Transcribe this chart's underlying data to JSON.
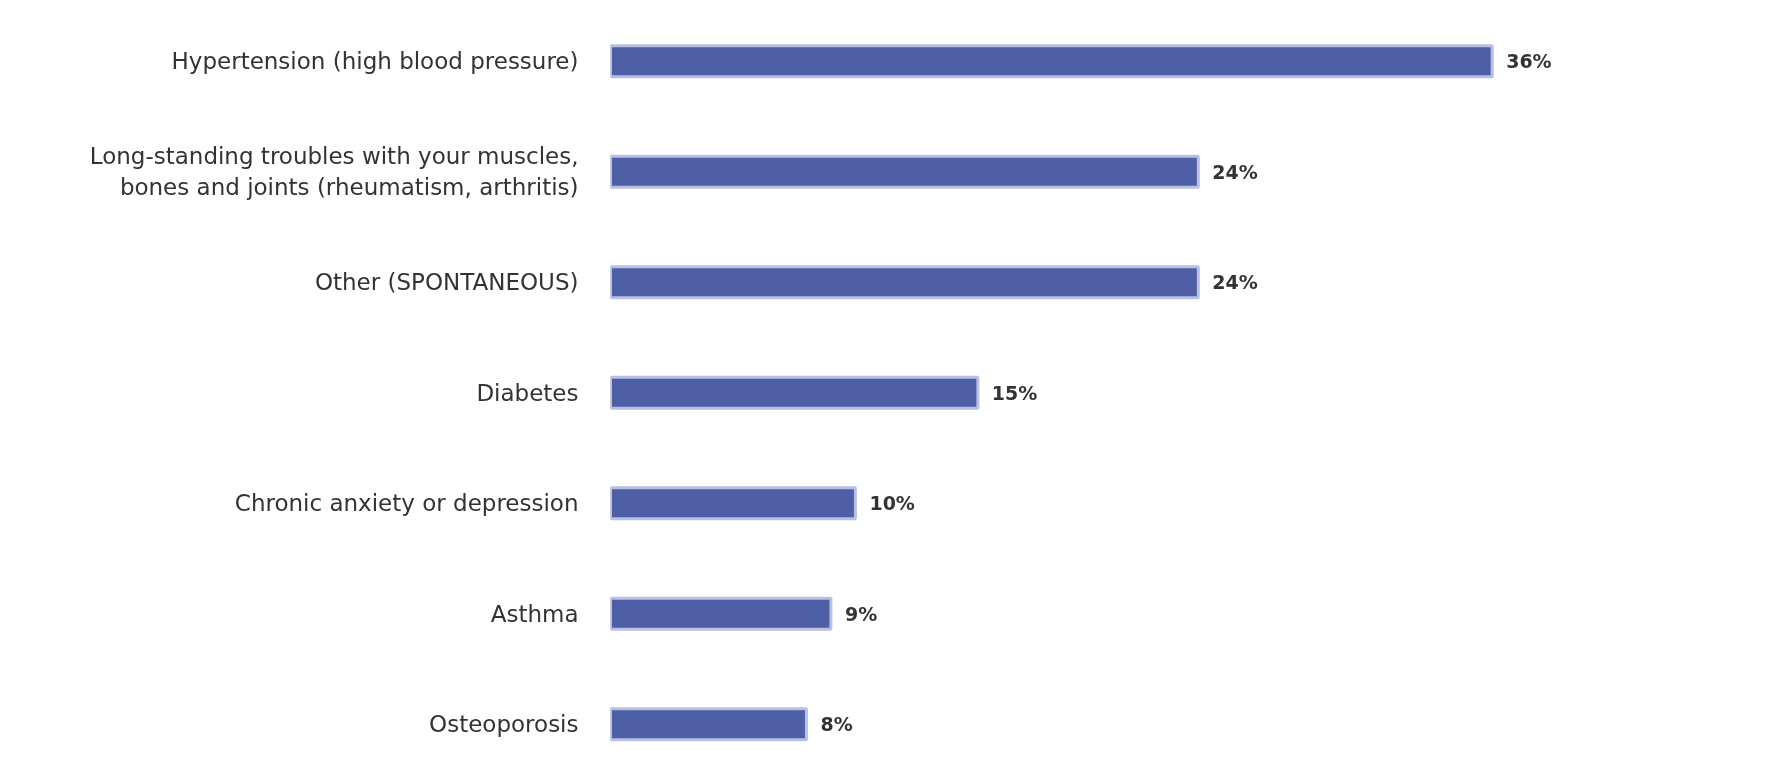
{
  "chart_data": {
    "type": "bar",
    "orientation": "horizontal",
    "categories": [
      "Hypertension (high blood pressure)",
      "Long-standing troubles with your muscles,\nbones and joints (rheumatism, arthritis)",
      "Other (SPONTANEOUS)",
      "Diabetes",
      "Chronic anxiety or depression",
      "Asthma",
      "Osteoporosis"
    ],
    "values": [
      36,
      24,
      24,
      15,
      10,
      9,
      8
    ],
    "value_labels": [
      "36%",
      "24%",
      "24%",
      "15%",
      "10%",
      "9%",
      "8%"
    ],
    "color": "#4f5fa6",
    "grid": false
  }
}
